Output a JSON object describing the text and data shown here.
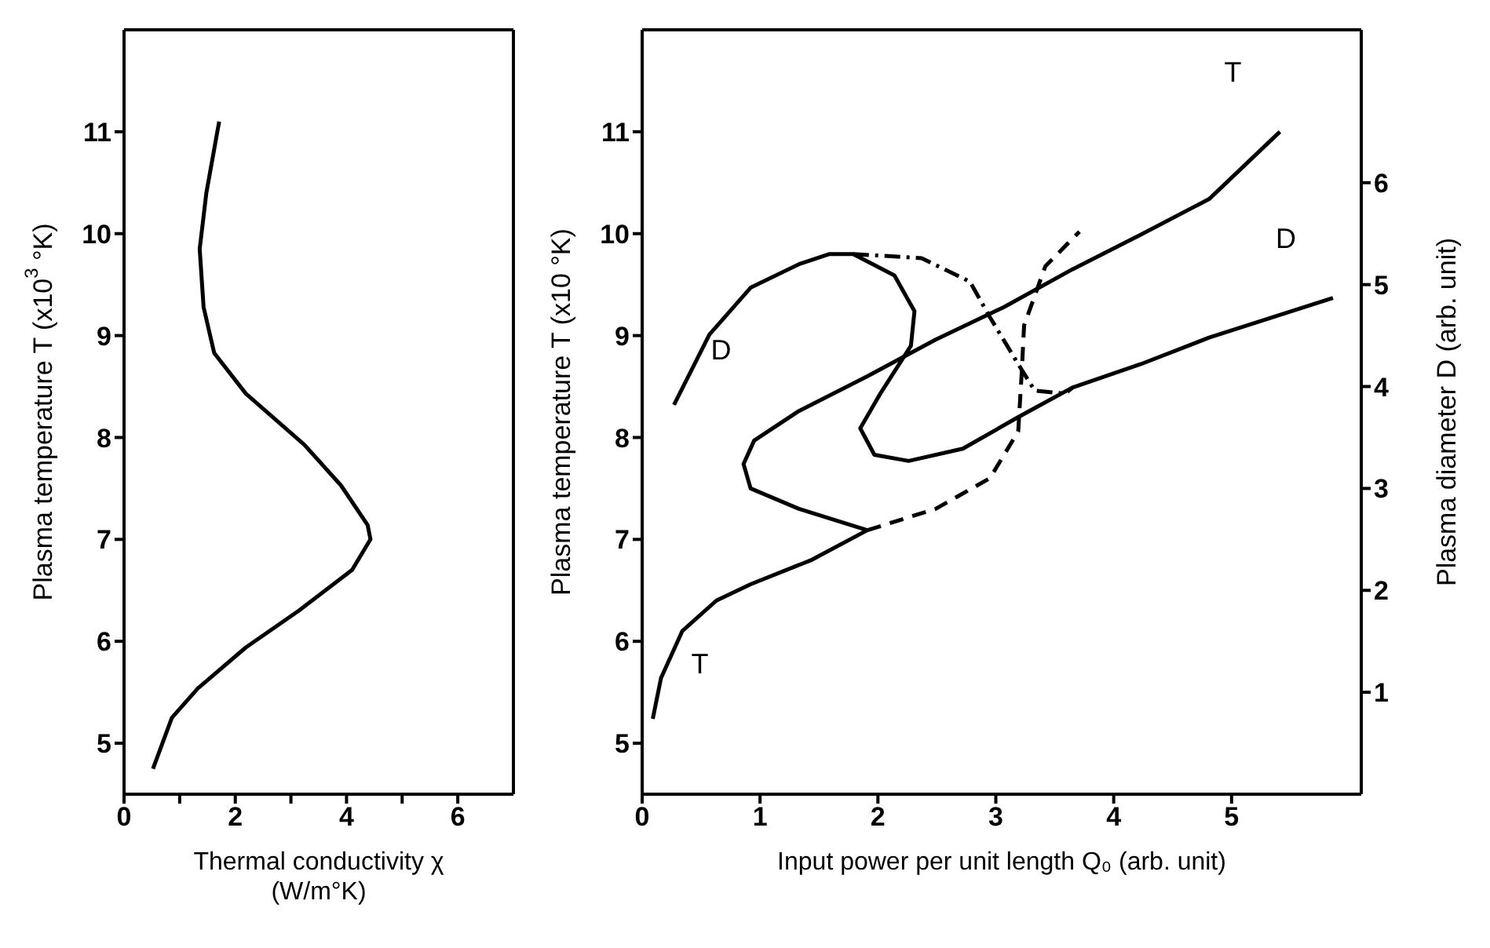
{
  "chart_data": [
    {
      "type": "line",
      "xlabel": "Thermal conductivity χ (W/m°K)",
      "ylabel": "Plasma temperature T (x10$^{3}$ °K)",
      "xlim": [
        0,
        7
      ],
      "ylim": [
        4.5,
        12
      ],
      "xticks": [
        0,
        {
          "value": 1,
          "label": null
        },
        2,
        {
          "value": 3,
          "label": null
        },
        4,
        {
          "value": 5,
          "label": null
        },
        6
      ],
      "yticks": [
        5,
        6,
        7,
        8,
        9,
        10,
        11
      ],
      "marker": "none",
      "series": [
        {
          "color": "#000000",
          "line_style": "solid",
          "x": [
            1.71,
            1.48,
            1.36,
            1.43,
            1.62,
            2.19,
            3.24,
            3.9,
            4.38,
            4.43,
            4.1,
            3.14,
            2.19,
            1.33,
            0.86,
            0.52
          ],
          "values": [
            11.1,
            10.4,
            9.85,
            9.28,
            8.83,
            8.43,
            7.93,
            7.53,
            7.14,
            7.0,
            6.7,
            6.3,
            5.94,
            5.54,
            5.25,
            4.75
          ]
        }
      ]
    },
    {
      "type": "line",
      "xlabel": "Input power per unit length Q₀ (arb. unit)",
      "ylabel": "Plasma temperature T (x10 °K)",
      "y2label": "Plasma diameter D (arb. unit)",
      "xlim": [
        0,
        6.1
      ],
      "ylim": [
        4.5,
        12
      ],
      "y2lim": [
        0,
        7.5
      ],
      "xticks": [
        0,
        1,
        2,
        3,
        4,
        5
      ],
      "yticks": [
        5,
        6,
        7,
        8,
        9,
        10,
        11
      ],
      "y2ticks": [
        1,
        2,
        3,
        4,
        5,
        6
      ],
      "marker": "none",
      "series": [
        {
          "name": "T",
          "color": "#000000",
          "line_style": "solid",
          "x": [
            0.09,
            0.16,
            0.34,
            0.63,
            0.92,
            1.44,
            1.91,
            1.33,
            0.92,
            0.86,
            0.95,
            1.33,
            1.91,
            2.49,
            3.07,
            3.65,
            4.23,
            4.81,
            5.41
          ],
          "values": [
            5.24,
            5.64,
            6.1,
            6.4,
            6.56,
            6.8,
            7.09,
            7.3,
            7.5,
            7.74,
            7.97,
            8.26,
            8.6,
            8.96,
            9.28,
            9.65,
            9.99,
            10.34,
            11.0
          ]
        },
        {
          "color": "#000000",
          "line_style": "dashed",
          "x": [
            1.91,
            2.49,
            2.95,
            3.19,
            3.22,
            3.24,
            3.42,
            3.71
          ],
          "values": [
            7.09,
            7.3,
            7.6,
            8.06,
            8.64,
            9.1,
            9.68,
            10.02
          ]
        },
        {
          "name": "D",
          "color": "#000000",
          "line_style": "solid",
          "axis": "y2",
          "x": [
            0.27,
            0.57,
            0.92,
            1.33,
            1.59,
            1.79,
            2.14,
            2.31,
            2.28,
            2.02,
            1.85,
            1.97,
            2.26,
            2.72,
            3.19,
            3.65,
            4.23,
            4.81,
            5.86
          ],
          "values": [
            3.82,
            4.51,
            4.97,
            5.2,
            5.3,
            5.3,
            5.09,
            4.74,
            4.4,
            3.93,
            3.59,
            3.33,
            3.27,
            3.39,
            3.7,
            3.99,
            4.22,
            4.48,
            4.87
          ]
        },
        {
          "color": "#000000",
          "line_style": "dashdot",
          "axis": "y2",
          "x": [
            1.79,
            2.37,
            2.78,
            2.95,
            3.19,
            3.33,
            3.59,
            3.65
          ],
          "values": [
            5.3,
            5.26,
            5.03,
            4.68,
            4.22,
            3.96,
            3.93,
            3.99
          ]
        }
      ]
    }
  ]
}
